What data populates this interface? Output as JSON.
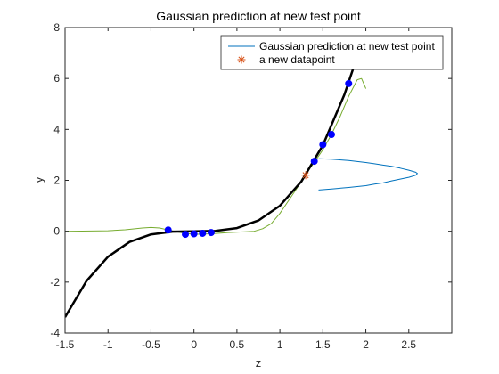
{
  "chart_data": {
    "type": "line",
    "title": "Gaussian prediction at new test point",
    "xlabel": "z",
    "ylabel": "y",
    "xlim": [
      -1.5,
      3.0
    ],
    "ylim": [
      -4,
      8
    ],
    "xticks": [
      "-1.5",
      "-1",
      "-0.5",
      "0",
      "0.5",
      "1",
      "1.5",
      "2",
      "2.5"
    ],
    "yticks": [
      "-4",
      "-2",
      "0",
      "2",
      "4",
      "6",
      "8"
    ],
    "grid": false,
    "legend_position": "top-right",
    "legend": [
      {
        "label": "Gaussian prediction at new test point",
        "color": "#0072BD",
        "marker": "line"
      },
      {
        "label": "a new datapoint",
        "color": "#D95319",
        "marker": "asterisk"
      }
    ],
    "series": [
      {
        "name": "Gaussian prediction at new test point",
        "color": "#0072BD",
        "kind": "line",
        "x": [
          1.45,
          1.6,
          1.8,
          2.0,
          2.1,
          2.2,
          2.3,
          2.4,
          2.5,
          2.58,
          2.6,
          2.58,
          2.5,
          2.4,
          2.3,
          2.2,
          2.1,
          2.0,
          1.8,
          1.6,
          1.45
        ],
        "y": [
          2.85,
          2.83,
          2.78,
          2.7,
          2.65,
          2.6,
          2.55,
          2.48,
          2.4,
          2.32,
          2.27,
          2.2,
          2.12,
          2.05,
          1.98,
          1.9,
          1.85,
          1.79,
          1.72,
          1.66,
          1.62
        ]
      },
      {
        "color": "#000000",
        "kind": "line",
        "x": [
          -1.5,
          -1.25,
          -1.0,
          -0.75,
          -0.5,
          -0.25,
          0.0,
          0.25,
          0.5,
          0.75,
          1.0,
          1.25,
          1.5,
          1.75,
          1.9
        ],
        "y": [
          -3.375,
          -1.953,
          -1.0,
          -0.422,
          -0.125,
          -0.016,
          0.0,
          0.016,
          0.125,
          0.422,
          1.0,
          1.953,
          3.375,
          5.359,
          6.859
        ]
      },
      {
        "color": "#77AC30",
        "kind": "line",
        "x": [
          -1.5,
          -1.0,
          -0.8,
          -0.6,
          -0.5,
          -0.4,
          -0.3,
          -0.2,
          -0.1,
          0.0,
          0.2,
          0.4,
          0.6,
          0.7,
          0.8,
          0.9,
          1.0,
          1.1,
          1.2,
          1.3,
          1.4,
          1.5,
          1.6,
          1.7,
          1.8,
          1.9,
          1.95,
          2.0
        ],
        "y": [
          0.0,
          0.02,
          0.06,
          0.13,
          0.15,
          0.13,
          0.05,
          -0.02,
          -0.08,
          -0.12,
          -0.1,
          -0.05,
          -0.02,
          0.0,
          0.1,
          0.3,
          0.7,
          1.2,
          1.7,
          2.25,
          2.7,
          3.2,
          3.8,
          4.5,
          5.3,
          5.95,
          6.0,
          5.6
        ]
      },
      {
        "color": "#0000FF",
        "kind": "scatter",
        "x": [
          -0.3,
          -0.1,
          0.0,
          0.1,
          0.2,
          1.4,
          1.5,
          1.6,
          1.8
        ],
        "y": [
          0.05,
          -0.12,
          -0.1,
          -0.08,
          -0.05,
          2.75,
          3.4,
          3.8,
          5.8
        ]
      },
      {
        "name": "a new datapoint",
        "color": "#D95319",
        "kind": "asterisk",
        "x": [
          1.3
        ],
        "y": [
          2.2
        ]
      }
    ]
  }
}
